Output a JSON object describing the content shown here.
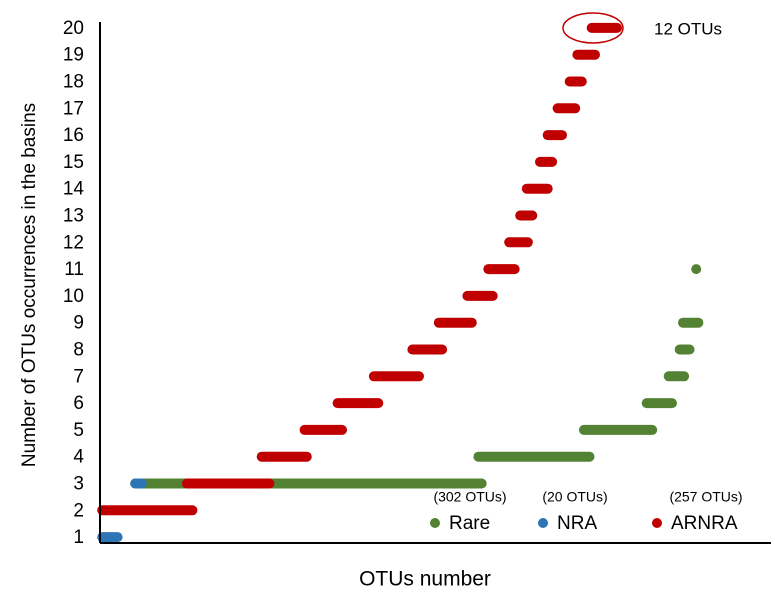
{
  "chart_data": {
    "type": "scatter",
    "y_label": "Number of OTUs occurrences in the basins",
    "x_label": "OTUs number",
    "annotation": "12 OTUs",
    "xlim": [
      -2,
      608
    ],
    "ylim": [
      0.78,
      20.22
    ],
    "yticks": [
      1,
      2,
      3,
      4,
      5,
      6,
      7,
      8,
      9,
      10,
      11,
      12,
      13,
      14,
      15,
      16,
      17,
      18,
      19,
      20
    ],
    "series": [
      {
        "name": "Rare",
        "count_label": "(302 OTUs)",
        "color": "#548235",
        "values": [
          3,
          4,
          5,
          6,
          7,
          8,
          9,
          11
        ],
        "xranges": [
          [
            30,
            345
          ],
          [
            342,
            443
          ],
          [
            438,
            500
          ],
          [
            495,
            518
          ],
          [
            515,
            529
          ],
          [
            525,
            534
          ],
          [
            528,
            542
          ],
          [
            540,
            540
          ]
        ]
      },
      {
        "name": "NRA",
        "count_label": "(20 OTUs)",
        "color": "#2e75b6",
        "values": [
          1,
          3
        ],
        "xranges": [
          [
            0,
            14
          ],
          [
            30,
            36
          ]
        ]
      },
      {
        "name": "ARNRA",
        "count_label": "(257 OTUs)",
        "color": "#c00000",
        "values": [
          2,
          3,
          4,
          5,
          6,
          7,
          8,
          9,
          10,
          11,
          12,
          13,
          14,
          15,
          16,
          17,
          18,
          19,
          20
        ],
        "xranges": [
          [
            0,
            82
          ],
          [
            77,
            152
          ],
          [
            145,
            186
          ],
          [
            184,
            218
          ],
          [
            214,
            251
          ],
          [
            247,
            288
          ],
          [
            282,
            309
          ],
          [
            306,
            336
          ],
          [
            332,
            355
          ],
          [
            351,
            375
          ],
          [
            370,
            387
          ],
          [
            380,
            391
          ],
          [
            386,
            405
          ],
          [
            398,
            409
          ],
          [
            405,
            418
          ],
          [
            414,
            430
          ],
          [
            425,
            436
          ],
          [
            432,
            448
          ],
          [
            445,
            468
          ]
        ]
      }
    ]
  }
}
